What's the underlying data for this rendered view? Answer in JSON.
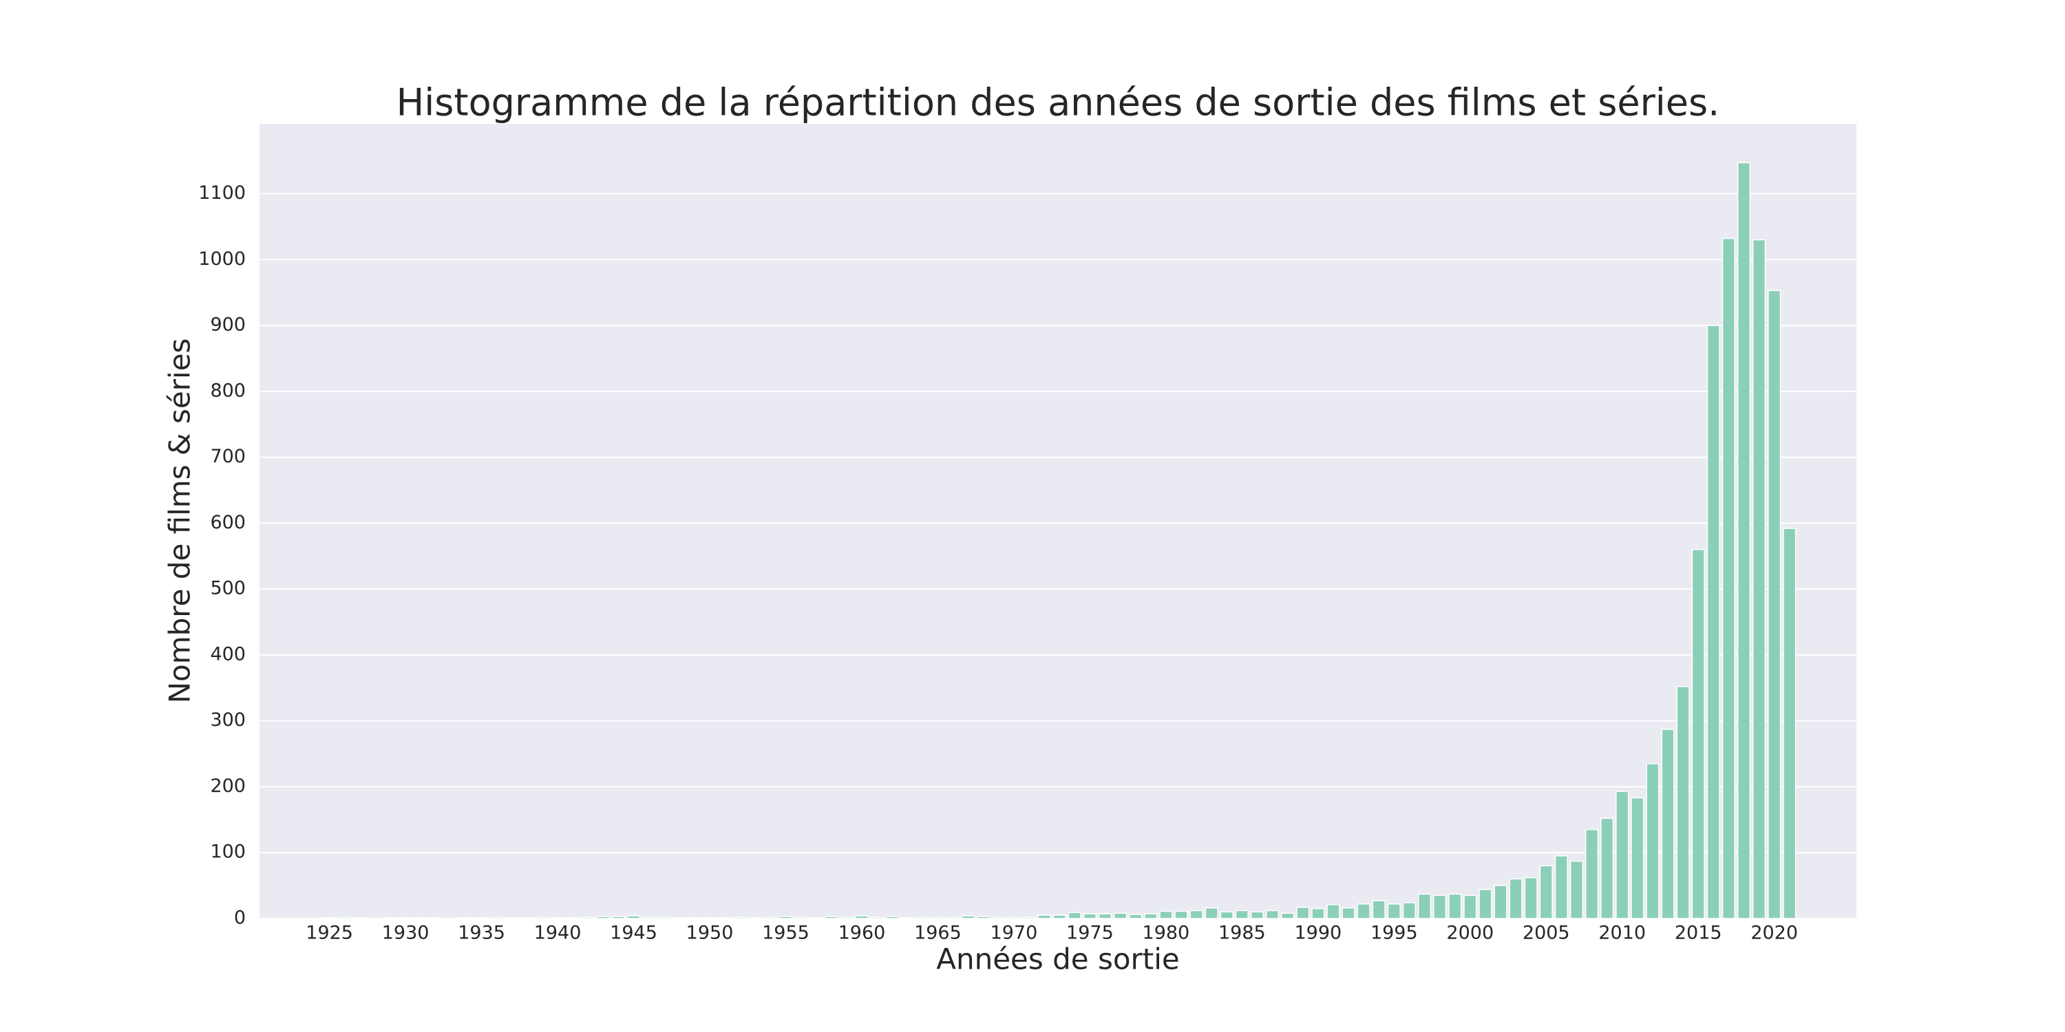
{
  "chart_data": {
    "type": "histogram",
    "title": "Histogramme de la répartition des années de sortie des films et séries.",
    "xlabel": "Années de sortie",
    "ylabel": "Nombre de films & séries",
    "bins": [
      1924.5,
      1925.5,
      1926.5,
      1927.5,
      1928.5,
      1929.5,
      1930.5,
      1931.5,
      1932.5,
      1933.5,
      1934.5,
      1935.5,
      1936.5,
      1937.5,
      1938.5,
      1939.5,
      1940.5,
      1941.5,
      1942.5,
      1943.5,
      1944.5,
      1945.5,
      1946.5,
      1947.5,
      1948.5,
      1949.5,
      1950.5,
      1951.5,
      1952.5,
      1953.5,
      1954.5,
      1955.5,
      1956.5,
      1957.5,
      1958.5,
      1959.5,
      1960.5,
      1961.5,
      1962.5,
      1963.5,
      1964.5,
      1965.5,
      1966.5,
      1967.5,
      1968.5,
      1969.5,
      1970.5,
      1971.5,
      1972.5,
      1973.5,
      1974.5,
      1975.5,
      1976.5,
      1977.5,
      1978.5,
      1979.5,
      1980.5,
      1981.5,
      1982.5,
      1983.5,
      1984.5,
      1985.5,
      1986.5,
      1987.5,
      1988.5,
      1989.5,
      1990.5,
      1991.5,
      1992.5,
      1993.5,
      1994.5,
      1995.5,
      1996.5,
      1997.5,
      1998.5,
      1999.5,
      2000.5,
      2001.5,
      2002.5,
      2003.5,
      2004.5,
      2005.5,
      2006.5,
      2007.5,
      2008.5,
      2009.5,
      2010.5,
      2011.5,
      2012.5,
      2013.5,
      2014.5,
      2015.5,
      2016.5,
      2017.5,
      2018.5,
      2019.5,
      2020.5,
      2021.5
    ],
    "counts": [
      1,
      2,
      1,
      0,
      1,
      1,
      1,
      1,
      0,
      1,
      1,
      2,
      1,
      1,
      2,
      1,
      1,
      2,
      3,
      3,
      4,
      2,
      2,
      1,
      1,
      1,
      1,
      2,
      1,
      2,
      3,
      2,
      1,
      3,
      2,
      4,
      2,
      3,
      1,
      2,
      2,
      2,
      4,
      3,
      2,
      2,
      2,
      5,
      5,
      9,
      7,
      7,
      8,
      6,
      7,
      11,
      11,
      12,
      16,
      10,
      12,
      10,
      12,
      8,
      17,
      15,
      21,
      16,
      22,
      27,
      22,
      24,
      37,
      35,
      37,
      35,
      44,
      50,
      60,
      62,
      80,
      95,
      87,
      135,
      152,
      193,
      183,
      235,
      287,
      352,
      560,
      900,
      1032,
      1147,
      1030,
      953,
      592
    ],
    "color": "#8ccfb9",
    "xlim": [
      1920.4,
      2025.4
    ],
    "xticks": [
      1925,
      1930,
      1935,
      1940,
      1945,
      1950,
      1955,
      1960,
      1965,
      1970,
      1975,
      1980,
      1985,
      1990,
      1995,
      2000,
      2005,
      2010,
      2015,
      2020
    ],
    "ylim": [
      0,
      1206
    ],
    "yticks": [
      0,
      100,
      200,
      300,
      400,
      500,
      600,
      700,
      800,
      900,
      1000,
      1100
    ],
    "grid": true
  }
}
